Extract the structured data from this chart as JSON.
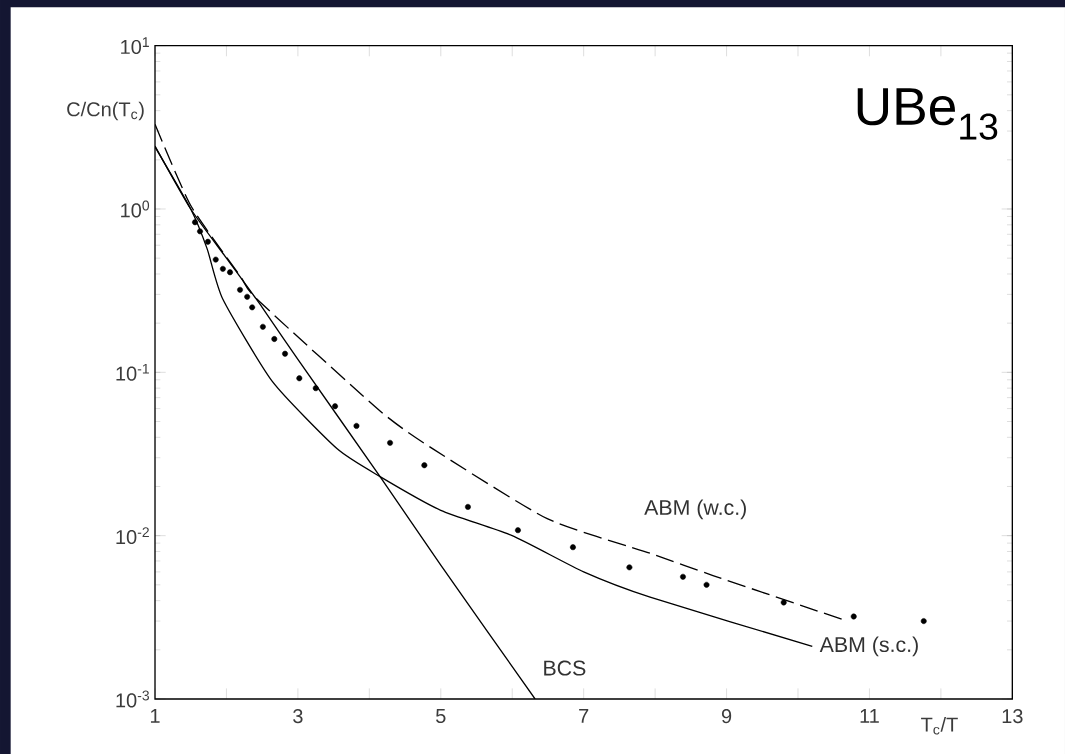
{
  "chart_data": {
    "type": "line",
    "title": "UBe$_{13}$",
    "xlabel": "T$_{c}$/T",
    "ylabel": "C/Cn(T$_{c}$)",
    "log": "y",
    "xlim": [
      1,
      13
    ],
    "ylim": [
      0.001,
      10
    ],
    "xticks": [
      1,
      {
        "value": 2,
        "label": null
      },
      3,
      {
        "value": 4,
        "label": null
      },
      5,
      {
        "value": 6,
        "label": null
      },
      7,
      {
        "value": 8,
        "label": null
      },
      9,
      {
        "value": 10,
        "label": null
      },
      11,
      {
        "value": 12,
        "label": null
      },
      13
    ],
    "yticks": [
      {
        "value": 0.001,
        "label": "10$^{-3}$"
      },
      {
        "value": 0.01,
        "label": "10$^{-2}$"
      },
      {
        "value": 0.1,
        "label": "10$^{-1}$"
      },
      {
        "value": 1,
        "label": "10$^{0}$"
      },
      {
        "value": 10,
        "label": "10$^{1}$"
      }
    ],
    "series": [
      {
        "name": "BCS",
        "line_style": "solid",
        "color": "#000000",
        "x": [
          1,
          1.5,
          2,
          2.5,
          3,
          4.15,
          5,
          6.32
        ],
        "values": [
          2.43,
          1.0,
          0.5,
          0.25,
          0.12,
          0.023,
          0.0066,
          0.001
        ]
      },
      {
        "name": "ABM (s.c.)",
        "line_style": "solid",
        "color": "#000000",
        "x": [
          1,
          1.5,
          1.73,
          1.95,
          2.65,
          3.55,
          4.15,
          5,
          6,
          7,
          7.93,
          10.2
        ],
        "values": [
          2.4,
          1.0,
          0.57,
          0.28,
          0.087,
          0.034,
          0.023,
          0.0143,
          0.01,
          0.006,
          0.0042,
          0.0021
        ]
      },
      {
        "name": "ABM (w.c.)",
        "line_style": "dashed",
        "color": "#000000",
        "x": [
          1,
          1.5,
          2.19,
          2.43,
          4.15,
          4.89,
          6.49,
          7.93,
          8.81,
          10.69
        ],
        "values": [
          3.3,
          1.05,
          0.39,
          0.28,
          0.058,
          0.034,
          0.0127,
          0.0078,
          0.0057,
          0.003
        ]
      },
      {
        "type": "scatter",
        "marker": "circle",
        "color": "#000000",
        "x": [
          1.56,
          1.63,
          1.74,
          1.85,
          1.95,
          2.05,
          2.19,
          2.29,
          2.36,
          2.51,
          2.67,
          2.82,
          3.02,
          3.25,
          3.52,
          3.82,
          4.29,
          4.77,
          5.38,
          6.08,
          6.85,
          7.64,
          8.39,
          8.72,
          9.8,
          10.78,
          11.76
        ],
        "values": [
          0.83,
          0.73,
          0.63,
          0.49,
          0.43,
          0.41,
          0.32,
          0.29,
          0.25,
          0.19,
          0.16,
          0.13,
          0.092,
          0.08,
          0.062,
          0.047,
          0.037,
          0.027,
          0.015,
          0.0108,
          0.0085,
          0.0064,
          0.0056,
          0.005,
          0.0039,
          0.0032,
          0.003
        ]
      }
    ]
  }
}
